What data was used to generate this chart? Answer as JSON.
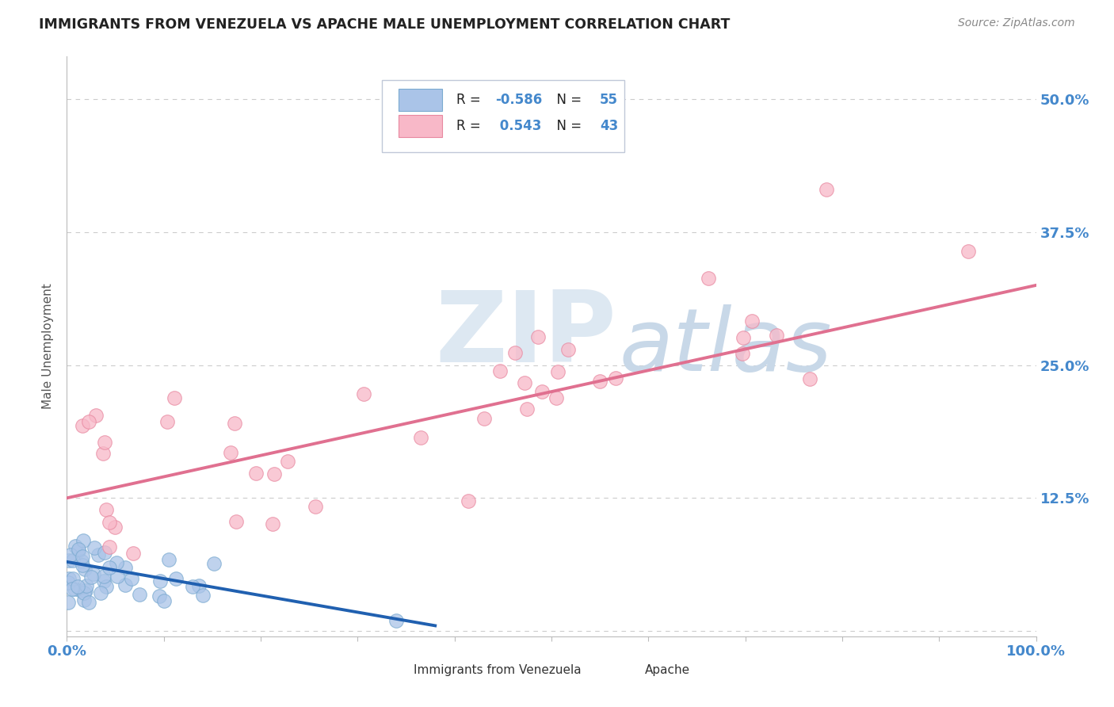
{
  "title": "IMMIGRANTS FROM VENEZUELA VS APACHE MALE UNEMPLOYMENT CORRELATION CHART",
  "source": "Source: ZipAtlas.com",
  "ylabel": "Male Unemployment",
  "xlim": [
    0.0,
    1.0
  ],
  "ylim": [
    -0.005,
    0.54
  ],
  "yticks": [
    0.0,
    0.125,
    0.25,
    0.375,
    0.5
  ],
  "ytick_labels": [
    "",
    "12.5%",
    "25.0%",
    "37.5%",
    "50.0%"
  ],
  "blue_R": -0.586,
  "blue_N": 55,
  "pink_R": 0.543,
  "pink_N": 43,
  "blue_color": "#aac4e8",
  "blue_edge_color": "#7aaad0",
  "blue_line_color": "#2060b0",
  "pink_color": "#f8b8c8",
  "pink_edge_color": "#e888a0",
  "pink_line_color": "#e07090",
  "background_color": "#ffffff",
  "grid_color": "#cccccc",
  "title_color": "#222222",
  "axis_tick_color": "#4488cc",
  "legend_label1": "Immigrants from Venezuela",
  "legend_label2": "Apache",
  "watermark_zip": "ZIP",
  "watermark_atlas": "atlas",
  "watermark_color_zip": "#d8e4f0",
  "watermark_color_atlas": "#d0dce8"
}
